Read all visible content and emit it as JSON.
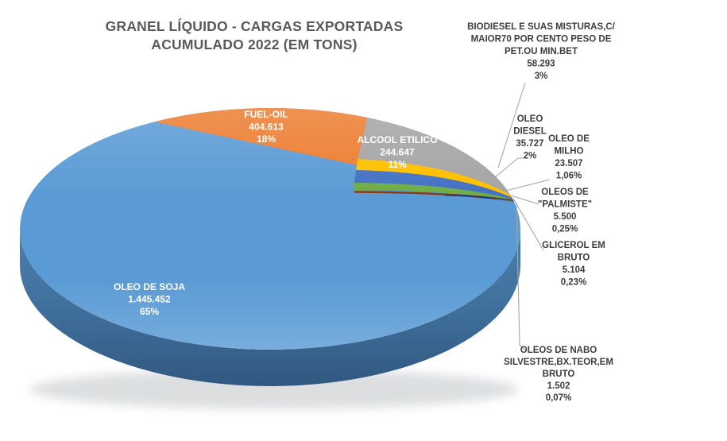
{
  "title": {
    "line1": "GRANEL LÍQUIDO - CARGAS EXPORTADAS",
    "line2": "ACUMULADO 2022 (EM TONS)"
  },
  "chart_data": {
    "type": "pie",
    "title": "GRANEL LÍQUIDO - CARGAS EXPORTADAS ACUMULADO 2022 (EM TONS)",
    "unit": "tons",
    "style": "3d-pie",
    "legend_position": "none",
    "slices": [
      {
        "label": "OLEO DE SOJA",
        "value": 1445452,
        "value_text": "1.445.452",
        "pct_text": "65%",
        "color": "#5B9BD5",
        "label_lines": [
          "OLEO DE SOJA",
          "1.445.452",
          "65%"
        ],
        "label_placement": "inside"
      },
      {
        "label": "FUEL-OIL",
        "value": 404613,
        "value_text": "404.613",
        "pct_text": "18%",
        "color": "#ED7D31",
        "label_lines": [
          "FUEL-OIL",
          "404.613",
          "18%"
        ],
        "label_placement": "inside"
      },
      {
        "label": "ALCOOL ETILICO",
        "value": 244647,
        "value_text": "244.647",
        "pct_text": "11%",
        "color": "#A5A5A5",
        "label_lines": [
          "ALCOOL ETILICO",
          "244.647",
          "11%"
        ],
        "label_placement": "inside"
      },
      {
        "label": "BIODIESEL E SUAS MISTURAS,C/ MAIOR70 POR CENTO PESO DE PET.OU MIN.BET",
        "value": 58293,
        "value_text": "58.293",
        "pct_text": "3%",
        "color": "#FFC000",
        "label_lines": [
          "BIODIESEL E SUAS MISTURAS,C/",
          "MAIOR70 POR CENTO PESO DE",
          "PET.OU MIN.BET",
          "58.293",
          "3%"
        ],
        "label_placement": "outside"
      },
      {
        "label": "OLEO DIESEL",
        "value": 35727,
        "value_text": "35.727",
        "pct_text": "2%",
        "color": "#4472C4",
        "label_lines": [
          "OLEO",
          "DIESEL",
          "35.727",
          "2%"
        ],
        "label_placement": "outside"
      },
      {
        "label": "OLEO DE MILHO",
        "value": 23507,
        "value_text": "23.507",
        "pct_text": "1,06%",
        "color": "#70AD47",
        "label_lines": [
          "OLEO DE",
          "MILHO",
          "23.507",
          "1,06%"
        ],
        "label_placement": "outside"
      },
      {
        "label": "OLEOS DE \"PALMISTE\"",
        "value": 5500,
        "value_text": "5.500",
        "pct_text": "0,25%",
        "color": "#8B3A0E",
        "label_lines": [
          "OLEOS DE",
          "\"PALMISTE\"",
          "5.500",
          "0,25%"
        ],
        "label_placement": "outside"
      },
      {
        "label": "GLICEROL EM BRUTO",
        "value": 5104,
        "value_text": "5.104",
        "pct_text": "0,23%",
        "color": "#1F3864",
        "label_lines": [
          "GLICEROL EM",
          "BRUTO",
          "5.104",
          "0,23%"
        ],
        "label_placement": "outside"
      },
      {
        "label": "OLEOS DE NABO SILVESTRE,BX.TEOR,EM BRUTO",
        "value": 1502,
        "value_text": "1.502",
        "pct_text": "0,07%",
        "color": "#636363",
        "label_lines": [
          "OLEOS DE NABO",
          "SILVESTRE,BX.TEOR,EM",
          "BRUTO",
          "1.502",
          "0,07%"
        ],
        "label_placement": "outside"
      }
    ]
  }
}
